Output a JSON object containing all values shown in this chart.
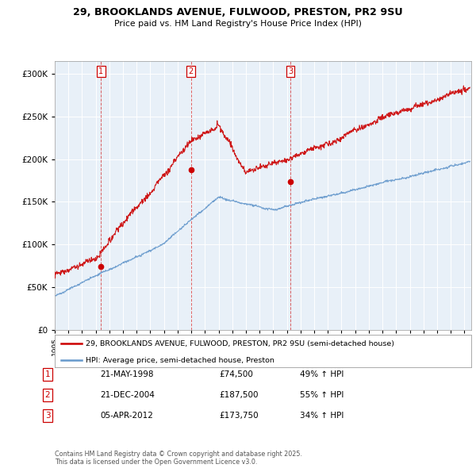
{
  "title_line1": "29, BROOKLANDS AVENUE, FULWOOD, PRESTON, PR2 9SU",
  "title_line2": "Price paid vs. HM Land Registry's House Price Index (HPI)",
  "ytick_vals": [
    0,
    50000,
    100000,
    150000,
    200000,
    250000,
    300000
  ],
  "ylim": [
    0,
    315000
  ],
  "xlim_start": 1995.0,
  "xlim_end": 2025.5,
  "sale_dates": [
    1998.388,
    2004.972,
    2012.264
  ],
  "sale_prices": [
    74500,
    187500,
    173750
  ],
  "sale_labels": [
    "1",
    "2",
    "3"
  ],
  "red_color": "#cc0000",
  "blue_color": "#6699cc",
  "legend_label_red": "29, BROOKLANDS AVENUE, FULWOOD, PRESTON, PR2 9SU (semi-detached house)",
  "legend_label_blue": "HPI: Average price, semi-detached house, Preston",
  "table_entries": [
    {
      "num": "1",
      "date": "21-MAY-1998",
      "price": "£74,500",
      "hpi": "49% ↑ HPI"
    },
    {
      "num": "2",
      "date": "21-DEC-2004",
      "price": "£187,500",
      "hpi": "55% ↑ HPI"
    },
    {
      "num": "3",
      "date": "05-APR-2012",
      "price": "£173,750",
      "hpi": "34% ↑ HPI"
    }
  ],
  "footnote": "Contains HM Land Registry data © Crown copyright and database right 2025.\nThis data is licensed under the Open Government Licence v3.0.",
  "xtick_years": [
    1995,
    1996,
    1997,
    1998,
    1999,
    2000,
    2001,
    2002,
    2003,
    2004,
    2005,
    2006,
    2007,
    2008,
    2009,
    2010,
    2011,
    2012,
    2013,
    2014,
    2015,
    2016,
    2017,
    2018,
    2019,
    2020,
    2021,
    2022,
    2023,
    2024,
    2025
  ],
  "bg_color": "#e8f0f8"
}
